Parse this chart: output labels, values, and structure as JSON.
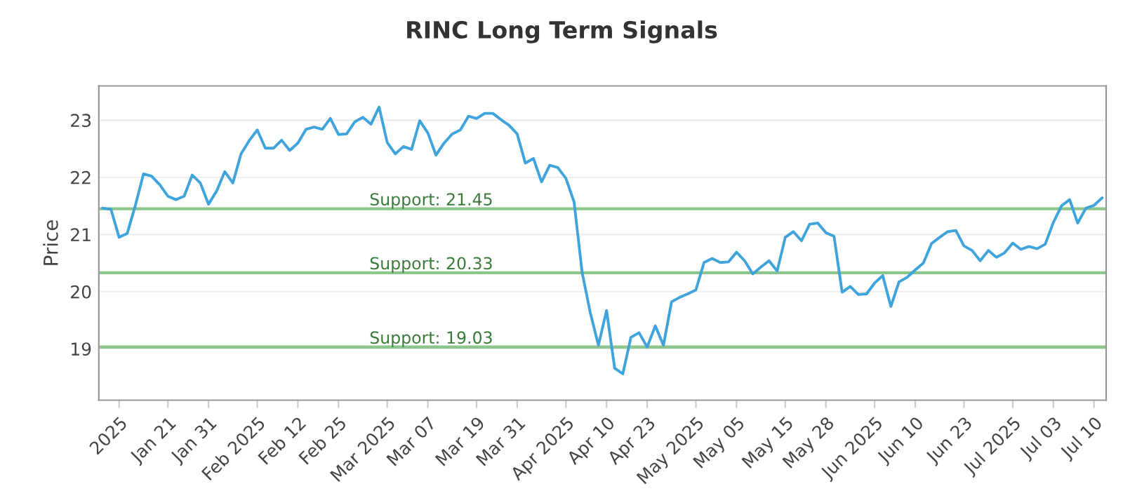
{
  "chart_data": {
    "type": "line",
    "title": "RINC Long Term Signals",
    "ylabel": "Price",
    "categories": [
      null,
      null,
      "2025",
      null,
      null,
      null,
      null,
      null,
      "Jan 21",
      null,
      null,
      null,
      null,
      "Jan 31",
      null,
      null,
      null,
      null,
      null,
      "Feb 2025",
      null,
      null,
      null,
      null,
      "Feb 12",
      null,
      null,
      null,
      null,
      "Feb 25",
      null,
      null,
      null,
      null,
      null,
      "Mar 2025",
      null,
      null,
      null,
      null,
      "Mar 07",
      null,
      null,
      null,
      null,
      null,
      "Mar 19",
      null,
      null,
      null,
      null,
      "Mar 31",
      null,
      null,
      null,
      null,
      null,
      "Apr 2025",
      null,
      null,
      null,
      null,
      "Apr 10",
      null,
      null,
      null,
      null,
      "Apr 23",
      null,
      null,
      null,
      null,
      null,
      "May 2025",
      null,
      null,
      null,
      null,
      "May 05",
      null,
      null,
      null,
      null,
      null,
      "May 15",
      null,
      null,
      null,
      null,
      "May 28",
      null,
      null,
      null,
      null,
      null,
      "Jun 2025",
      null,
      null,
      null,
      null,
      "Jun 10",
      null,
      null,
      null,
      null,
      null,
      "Jun 23",
      null,
      null,
      null,
      null,
      null,
      "Jul 2025",
      null,
      null,
      null,
      null,
      "Jul 03",
      null,
      null,
      null,
      null,
      "Jul 10",
      null
    ],
    "series": [
      {
        "color": "#3fa3dc",
        "values": [
          21.46,
          21.44,
          20.95,
          21.02,
          21.51,
          22.06,
          22.02,
          21.87,
          21.67,
          21.61,
          21.67,
          22.04,
          21.9,
          21.53,
          21.76,
          22.1,
          21.9,
          22.41,
          22.64,
          22.83,
          22.51,
          22.51,
          22.65,
          22.47,
          22.6,
          22.84,
          22.88,
          22.84,
          23.03,
          22.75,
          22.76,
          22.97,
          23.05,
          22.93,
          23.23,
          22.61,
          22.41,
          22.54,
          22.49,
          22.99,
          22.78,
          22.39,
          22.6,
          22.76,
          22.83,
          23.07,
          23.03,
          23.12,
          23.12,
          23.01,
          22.91,
          22.76,
          22.25,
          22.33,
          21.92,
          22.21,
          22.17,
          21.98,
          21.57,
          20.33,
          19.63,
          19.06,
          19.67,
          18.66,
          18.56,
          19.2,
          19.28,
          19.03,
          19.4,
          19.06,
          19.82,
          19.9,
          19.96,
          20.03,
          20.51,
          20.58,
          20.51,
          20.52,
          20.69,
          20.54,
          20.31,
          20.43,
          20.54,
          20.36,
          20.95,
          21.05,
          20.89,
          21.18,
          21.2,
          21.03,
          20.97,
          19.99,
          20.09,
          19.95,
          19.96,
          20.15,
          20.28,
          19.74,
          20.17,
          20.25,
          20.38,
          20.5,
          20.84,
          20.95,
          21.05,
          21.07,
          20.8,
          20.72,
          20.54,
          20.72,
          20.6,
          20.68,
          20.85,
          20.74,
          20.79,
          20.75,
          20.83,
          21.21,
          21.5,
          21.61,
          21.2,
          21.46,
          21.51,
          21.64
        ]
      }
    ],
    "ylim": [
      18.1,
      23.6
    ],
    "yticks": [
      19,
      20,
      21,
      22,
      23
    ],
    "grid": "y",
    "marker": "none",
    "line_style": "solid",
    "ref_lines": [
      {
        "axis": "y",
        "value": 21.45,
        "label": "Support: 21.45",
        "color": "#8cc68c"
      },
      {
        "axis": "y",
        "value": 20.33,
        "label": "Support: 20.33",
        "color": "#8cc68c"
      },
      {
        "axis": "y",
        "value": 19.03,
        "label": "Support: 19.03",
        "color": "#8cc68c"
      }
    ]
  }
}
